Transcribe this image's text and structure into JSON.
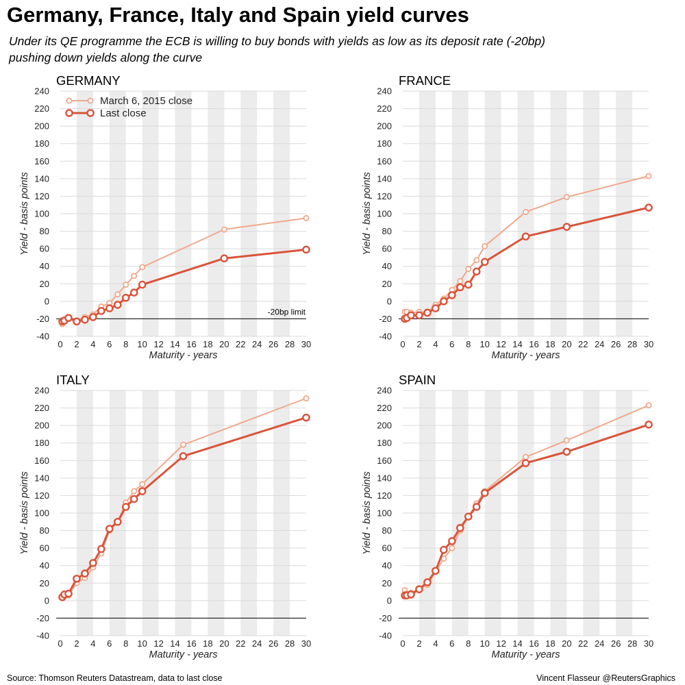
{
  "title": "Germany, France, Italy and Spain yield curves",
  "subtitle_line1": "Under its QE programme the ECB is willing to buy bonds with yields as low as its deposit rate (-20bp)",
  "subtitle_line2": "pushing down yields along the curve",
  "source": "Source: Thomson Reuters Datastream, data to last close",
  "credit": "Vincent Flasseur @ReutersGraphics",
  "colors": {
    "march": "#f0a88c",
    "last": "#d9533a",
    "band": "#ececec",
    "grid": "#d9d9d9"
  },
  "chart_data": [
    {
      "type": "line",
      "title": "GERMANY",
      "xlabel": "Maturity - years",
      "ylabel": "Yield - basis points",
      "xlim": [
        0,
        30
      ],
      "ylim": [
        -40,
        240
      ],
      "xticks": [
        0,
        2,
        4,
        6,
        8,
        10,
        12,
        14,
        16,
        18,
        20,
        22,
        24,
        26,
        28,
        30
      ],
      "yticks": [
        -40,
        -20,
        0,
        20,
        40,
        60,
        80,
        100,
        120,
        140,
        160,
        180,
        200,
        220,
        240
      ],
      "reference_line": {
        "y": -20,
        "label": "-20bp limit"
      },
      "legend": "top-left",
      "series": [
        {
          "name": "March 6, 2015 close",
          "x": [
            0.25,
            0.5,
            1,
            2,
            3,
            4,
            5,
            6,
            7,
            8,
            9,
            10,
            20,
            30
          ],
          "y": [
            -26,
            -22,
            -19,
            -22,
            -18,
            -15,
            -6,
            -2,
            8,
            19,
            29,
            39,
            82,
            95
          ]
        },
        {
          "name": "Last close",
          "x": [
            0.25,
            0.5,
            1,
            2,
            3,
            4,
            5,
            6,
            7,
            8,
            9,
            10,
            20,
            30
          ],
          "y": [
            -23,
            -22,
            -19,
            -23,
            -21,
            -18,
            -11,
            -8,
            -4,
            4,
            10,
            19,
            49,
            59
          ]
        }
      ]
    },
    {
      "type": "line",
      "title": "FRANCE",
      "xlabel": "Maturity - years",
      "ylabel": "Yield - basis points",
      "xlim": [
        0,
        30
      ],
      "ylim": [
        -40,
        240
      ],
      "xticks": [
        0,
        2,
        4,
        6,
        8,
        10,
        12,
        14,
        16,
        18,
        20,
        22,
        24,
        26,
        28,
        30
      ],
      "yticks": [
        -40,
        -20,
        0,
        20,
        40,
        60,
        80,
        100,
        120,
        140,
        160,
        180,
        200,
        220,
        240
      ],
      "reference_line": {
        "y": -20,
        "label": ""
      },
      "series": [
        {
          "name": "March 6, 2015 close",
          "x": [
            0.25,
            0.5,
            1,
            2,
            3,
            4,
            5,
            6,
            7,
            8,
            9,
            10,
            15,
            20,
            30
          ],
          "y": [
            -12,
            -12,
            -13,
            -12,
            -13,
            -4,
            3,
            13,
            23,
            37,
            47,
            63,
            102,
            119,
            143
          ]
        },
        {
          "name": "Last close",
          "x": [
            0.25,
            0.5,
            1,
            2,
            3,
            4,
            5,
            6,
            7,
            8,
            9,
            10,
            15,
            20,
            30
          ],
          "y": [
            -20,
            -19,
            -16,
            -16,
            -13,
            -8,
            0,
            7,
            16,
            19,
            34,
            45,
            74,
            85,
            107
          ]
        }
      ]
    },
    {
      "type": "line",
      "title": "ITALY",
      "xlabel": "Maturity - years",
      "ylabel": "Yield - basis points",
      "xlim": [
        0,
        30
      ],
      "ylim": [
        -40,
        240
      ],
      "xticks": [
        0,
        2,
        4,
        6,
        8,
        10,
        12,
        14,
        16,
        18,
        20,
        22,
        24,
        26,
        28,
        30
      ],
      "yticks": [
        -40,
        -20,
        0,
        20,
        40,
        60,
        80,
        100,
        120,
        140,
        160,
        180,
        200,
        220,
        240
      ],
      "reference_line": {
        "y": -20,
        "label": ""
      },
      "series": [
        {
          "name": "March 6, 2015 close",
          "x": [
            0.25,
            0.5,
            1,
            2,
            3,
            4,
            5,
            6,
            7,
            8,
            9,
            10,
            15,
            30
          ],
          "y": [
            4,
            5,
            6,
            20,
            26,
            38,
            54,
            80,
            90,
            112,
            125,
            133,
            178,
            231
          ]
        },
        {
          "name": "Last close",
          "x": [
            0.25,
            0.5,
            1,
            2,
            3,
            4,
            5,
            6,
            7,
            8,
            9,
            10,
            15,
            30
          ],
          "y": [
            4,
            7,
            8,
            25,
            31,
            43,
            59,
            82,
            90,
            107,
            116,
            125,
            165,
            209
          ]
        }
      ]
    },
    {
      "type": "line",
      "title": "SPAIN",
      "xlabel": "Maturity - years",
      "ylabel": "Yield - basis points",
      "xlim": [
        0,
        30
      ],
      "ylim": [
        -40,
        240
      ],
      "xticks": [
        0,
        2,
        4,
        6,
        8,
        10,
        12,
        14,
        16,
        18,
        20,
        22,
        24,
        26,
        28,
        30
      ],
      "yticks": [
        -40,
        -20,
        0,
        20,
        40,
        60,
        80,
        100,
        120,
        140,
        160,
        180,
        200,
        220,
        240
      ],
      "reference_line": {
        "y": -20,
        "label": ""
      },
      "series": [
        {
          "name": "March 6, 2015 close",
          "x": [
            0.25,
            0.5,
            1,
            2,
            3,
            4,
            5,
            6,
            7,
            8,
            9,
            10,
            15,
            20,
            30
          ],
          "y": [
            12,
            8,
            9,
            14,
            18,
            33,
            48,
            60,
            80,
            96,
            111,
            125,
            164,
            183,
            223
          ]
        },
        {
          "name": "Last close",
          "x": [
            0.25,
            0.5,
            1,
            2,
            3,
            4,
            5,
            6,
            7,
            8,
            9,
            10,
            15,
            20,
            30
          ],
          "y": [
            6,
            6,
            7,
            13,
            21,
            34,
            58,
            68,
            83,
            96,
            107,
            123,
            157,
            170,
            201
          ]
        }
      ]
    }
  ]
}
